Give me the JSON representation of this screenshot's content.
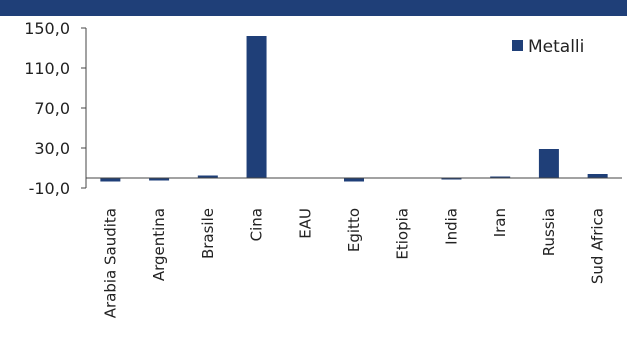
{
  "chart_data": {
    "type": "bar",
    "categories": [
      "Arabia Saudita",
      "Argentina",
      "Brasile",
      "Cina",
      "EAU",
      "Egitto",
      "Etiopia",
      "India",
      "Iran",
      "Russia",
      "Sud Africa"
    ],
    "series": [
      {
        "name": "Metalli",
        "values": [
          -3.5,
          -2.5,
          2.5,
          142.0,
          0.5,
          -3.5,
          0.0,
          -1.5,
          1.5,
          29.0,
          4.0
        ]
      }
    ],
    "xlabel": "",
    "ylabel": "",
    "ylim": [
      -10,
      150
    ],
    "yticks": [
      "150,0",
      "110,0",
      "70,0",
      "30,0",
      "-10,0"
    ],
    "legend_position": "top-right",
    "grid": false,
    "colors": {
      "bar": "#1f3f78",
      "top_band": "#1f3f78",
      "axis": "#444444"
    }
  }
}
